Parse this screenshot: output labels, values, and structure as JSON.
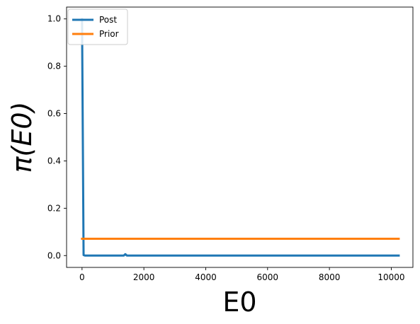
{
  "chart_data": {
    "type": "line",
    "title": "",
    "xlabel": "E0",
    "ylabel": "π(E0)",
    "xlim": [
      -500,
      10700
    ],
    "ylim": [
      -0.05,
      1.05
    ],
    "xticks": [
      0,
      2000,
      4000,
      6000,
      8000,
      10000
    ],
    "yticks": [
      0.0,
      0.2,
      0.4,
      0.6,
      0.8,
      1.0
    ],
    "xtick_labels": [
      "0",
      "2000",
      "4000",
      "6000",
      "8000",
      "10000"
    ],
    "ytick_labels": [
      "0.0",
      "0.2",
      "0.4",
      "0.6",
      "0.8",
      "1.0"
    ],
    "grid": false,
    "legend_position": "top-left",
    "series": [
      {
        "name": "Post",
        "color": "#1f77b4",
        "x": [
          0,
          50,
          100,
          1350,
          1400,
          1450,
          1500,
          10240
        ],
        "y": [
          1.0,
          0.002,
          0.0,
          0.0,
          0.006,
          0.0,
          0.0,
          0.0
        ]
      },
      {
        "name": "Prior",
        "color": "#ff7f0e",
        "x": [
          0,
          10240
        ],
        "y": [
          0.071,
          0.071
        ]
      }
    ]
  }
}
